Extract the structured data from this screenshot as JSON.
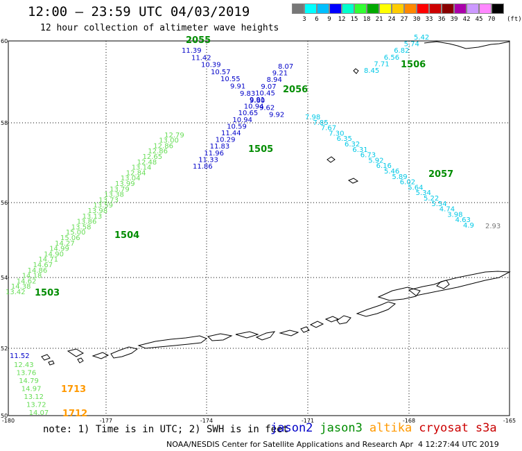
{
  "header": {
    "title": "12:00 – 23:59 UTC 04/03/2019",
    "subtitle": "12 hour collection of altimeter wave heights"
  },
  "colorbar": {
    "labels": [
      "3",
      "6",
      "9",
      "12",
      "15",
      "18",
      "21",
      "24",
      "27",
      "30",
      "33",
      "36",
      "39",
      "42",
      "45",
      "70"
    ],
    "unit": "(ft)",
    "colors": [
      "#777777",
      "#00ffff",
      "#00bfff",
      "#0000ff",
      "#00ffcc",
      "#33ff33",
      "#00aa00",
      "#ffff00",
      "#ffcc00",
      "#ff8800",
      "#ff0000",
      "#cc0000",
      "#880000",
      "#aa00aa",
      "#cc99ff",
      "#ff88ff",
      "#000000"
    ]
  },
  "axes": {
    "lat_labels": [
      "60",
      "58",
      "56",
      "54",
      "52",
      "50"
    ],
    "lon_labels": [
      "-180",
      "-177",
      "-174",
      "-171",
      "-168",
      "-165"
    ]
  },
  "satellite_colors": {
    "jason2": "#0000c8",
    "jason3": "#008c00",
    "altika": "#ff9900",
    "cryosat": "#cc0000",
    "s3a": "#c80000",
    "light_green": "#66dd55",
    "cyan": "#00c8e6",
    "grey": "#777777"
  },
  "tracks": [
    {
      "color": "light_green",
      "values": [
        "13.42",
        "14.38",
        "14.62",
        "14.18",
        "14.86",
        "14.67",
        "14.71",
        "14.90",
        "14.99",
        "14.27",
        "15.06",
        "15.00",
        "13.58",
        "13.86",
        "13.13",
        "13.98",
        "13.59",
        "13.73",
        "13.38",
        "13.79",
        "13.99",
        "13.04",
        "12.84",
        "13.14",
        "12.48",
        "12.65",
        "12.86",
        "12.86",
        "13.00",
        "12.79"
      ]
    },
    {
      "color": "jason2",
      "values": [
        "11.86",
        "11.33",
        "11.96",
        "11.83",
        "10.29",
        "11.44",
        "10.59",
        "10.94",
        "10.65",
        "10.94",
        "9.91",
        "10.45",
        "9.07",
        "8.94",
        "9.21",
        "8.07"
      ]
    },
    {
      "color": "jason2",
      "values": [
        "11.39",
        "11.42",
        "10.39",
        "10.57",
        "10.55",
        "9.91",
        "9.83",
        "9.60",
        "9.62",
        "9.92"
      ]
    },
    {
      "color": "cyan",
      "values": [
        "7.98",
        "7.85",
        "7.67",
        "7.30",
        "6.35",
        "6.32",
        "6.31",
        "6.73",
        "5.92",
        "6.16",
        "5.46",
        "5.89",
        "6.02",
        "5.64",
        "5.34",
        "5.22",
        "5.54",
        "4.74",
        "3.98",
        "4.63",
        "4.9"
      ]
    },
    {
      "color": "cyan",
      "values": [
        "8.45",
        "7.71",
        "6.56",
        "6.82",
        "5.74",
        "5.42"
      ]
    },
    {
      "color": "grey",
      "values": [
        "2.93"
      ]
    },
    {
      "color": "jason2",
      "values": [
        "11.52"
      ]
    },
    {
      "color": "light_green",
      "values": [
        "12.43",
        "13.76",
        "14.79",
        "14.97",
        "13.12",
        "13.72",
        "14.07"
      ]
    }
  ],
  "time_labels": [
    {
      "text": "2055",
      "color": "jason3"
    },
    {
      "text": "2056",
      "color": "jason3"
    },
    {
      "text": "1506",
      "color": "jason3"
    },
    {
      "text": "1505",
      "color": "jason3"
    },
    {
      "text": "2057",
      "color": "jason3"
    },
    {
      "text": "1504",
      "color": "jason3"
    },
    {
      "text": "1503",
      "color": "jason3"
    },
    {
      "text": "1713",
      "color": "altika"
    },
    {
      "text": "1712",
      "color": "altika"
    }
  ],
  "footer": {
    "note": "note: 1) Time is in UTC; 2) SWH is in feet",
    "legend": [
      "jason2",
      "jason3",
      "altika",
      "cryosat",
      "s3a"
    ],
    "credit": "NOAA/NESDIS Center for Satellite Applications and Research",
    "timestamp": "Apr  4 12:27:44 UTC 2019"
  }
}
